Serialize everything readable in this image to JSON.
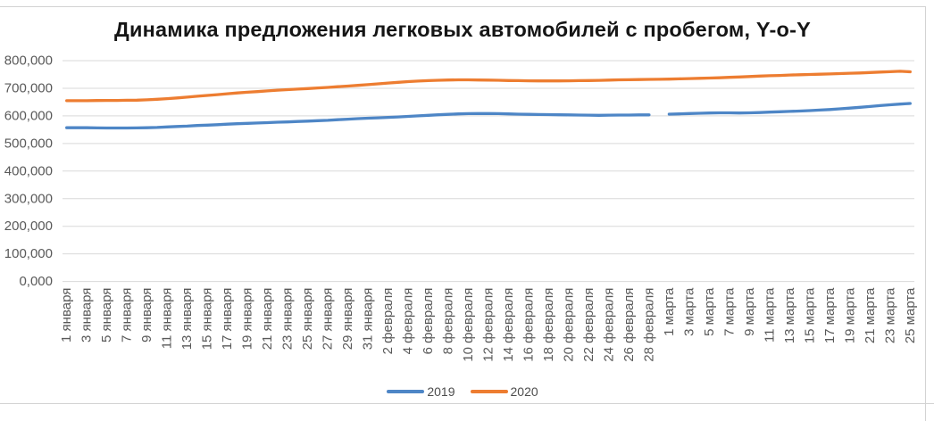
{
  "chart_data": {
    "type": "line",
    "title": "Динамика предложения легковых автомобилей с пробегом, Y-o-Y",
    "ylim": [
      0,
      800000
    ],
    "y_step": 100000,
    "y_tick_labels": [
      "0,000",
      "100,000",
      "200,000",
      "300,000",
      "400,000",
      "500,000",
      "600,000",
      "700,000",
      "800,000"
    ],
    "x_tick_labels": [
      "1 января",
      "3 января",
      "5 января",
      "7 января",
      "9 января",
      "11 января",
      "13 января",
      "15 января",
      "17 января",
      "19 января",
      "21 января",
      "23 января",
      "25 января",
      "27 января",
      "29 января",
      "31 января",
      "2 февраля",
      "4 февраля",
      "6 февраля",
      "8 февраля",
      "10 февраля",
      "12 февраля",
      "14 февраля",
      "16 февраля",
      "18 февраля",
      "20 февраля",
      "22 февраля",
      "24 февраля",
      "26 февраля",
      "28 февраля",
      "1 марта",
      "3 марта",
      "5 марта",
      "7 марта",
      "9 марта",
      "11 марта",
      "13 марта",
      "15 марта",
      "17 марта",
      "19 марта",
      "21 марта",
      "23 марта",
      "25 марта"
    ],
    "x_labels_every_n_points": 2,
    "grid": "horizontal",
    "legend_position": "bottom",
    "gridline_color": "#d9d9d9",
    "axis_label_color": "#595959",
    "series": [
      {
        "name": "2019",
        "color": "#4e86c6",
        "values": [
          557000,
          557000,
          557000,
          556500,
          556000,
          556000,
          556000,
          556500,
          557000,
          558000,
          560000,
          561500,
          563000,
          565000,
          566500,
          568000,
          570000,
          571500,
          573000,
          574000,
          575500,
          577000,
          578000,
          579500,
          581000,
          582500,
          584000,
          586000,
          588000,
          590000,
          591500,
          593000,
          594500,
          596000,
          598000,
          600000,
          602000,
          604000,
          605500,
          607000,
          608000,
          608500,
          608500,
          608000,
          607000,
          606000,
          605500,
          605000,
          604500,
          604000,
          603500,
          603000,
          602500,
          602000,
          602500,
          603000,
          603000,
          603500,
          603500,
          null,
          606000,
          607000,
          608500,
          609500,
          610500,
          611000,
          611000,
          610500,
          611000,
          612000,
          613500,
          615000,
          616000,
          617500,
          619000,
          621000,
          623000,
          625500,
          628000,
          631000,
          634000,
          637000,
          640000,
          642500,
          645000
        ]
      },
      {
        "name": "2020",
        "color": "#ed7d31",
        "values": [
          655000,
          655000,
          655000,
          655500,
          656000,
          656000,
          656500,
          657000,
          658000,
          660000,
          662500,
          665000,
          668000,
          671000,
          674000,
          677000,
          680000,
          683000,
          685500,
          688000,
          690500,
          693000,
          695000,
          697000,
          699000,
          701000,
          703000,
          705500,
          708000,
          710500,
          713000,
          716000,
          719000,
          721500,
          724000,
          726000,
          727500,
          729000,
          730000,
          730500,
          730500,
          730000,
          729500,
          729000,
          728000,
          727500,
          727000,
          726500,
          726500,
          726500,
          727000,
          727500,
          728000,
          728500,
          729500,
          730500,
          731000,
          731500,
          732000,
          732500,
          733000,
          734000,
          735000,
          736000,
          737000,
          738000,
          739500,
          741000,
          742500,
          744000,
          745500,
          746500,
          748000,
          749000,
          750000,
          751000,
          752000,
          753000,
          754500,
          755500,
          757000,
          758500,
          760000,
          761500,
          759500
        ]
      }
    ]
  }
}
